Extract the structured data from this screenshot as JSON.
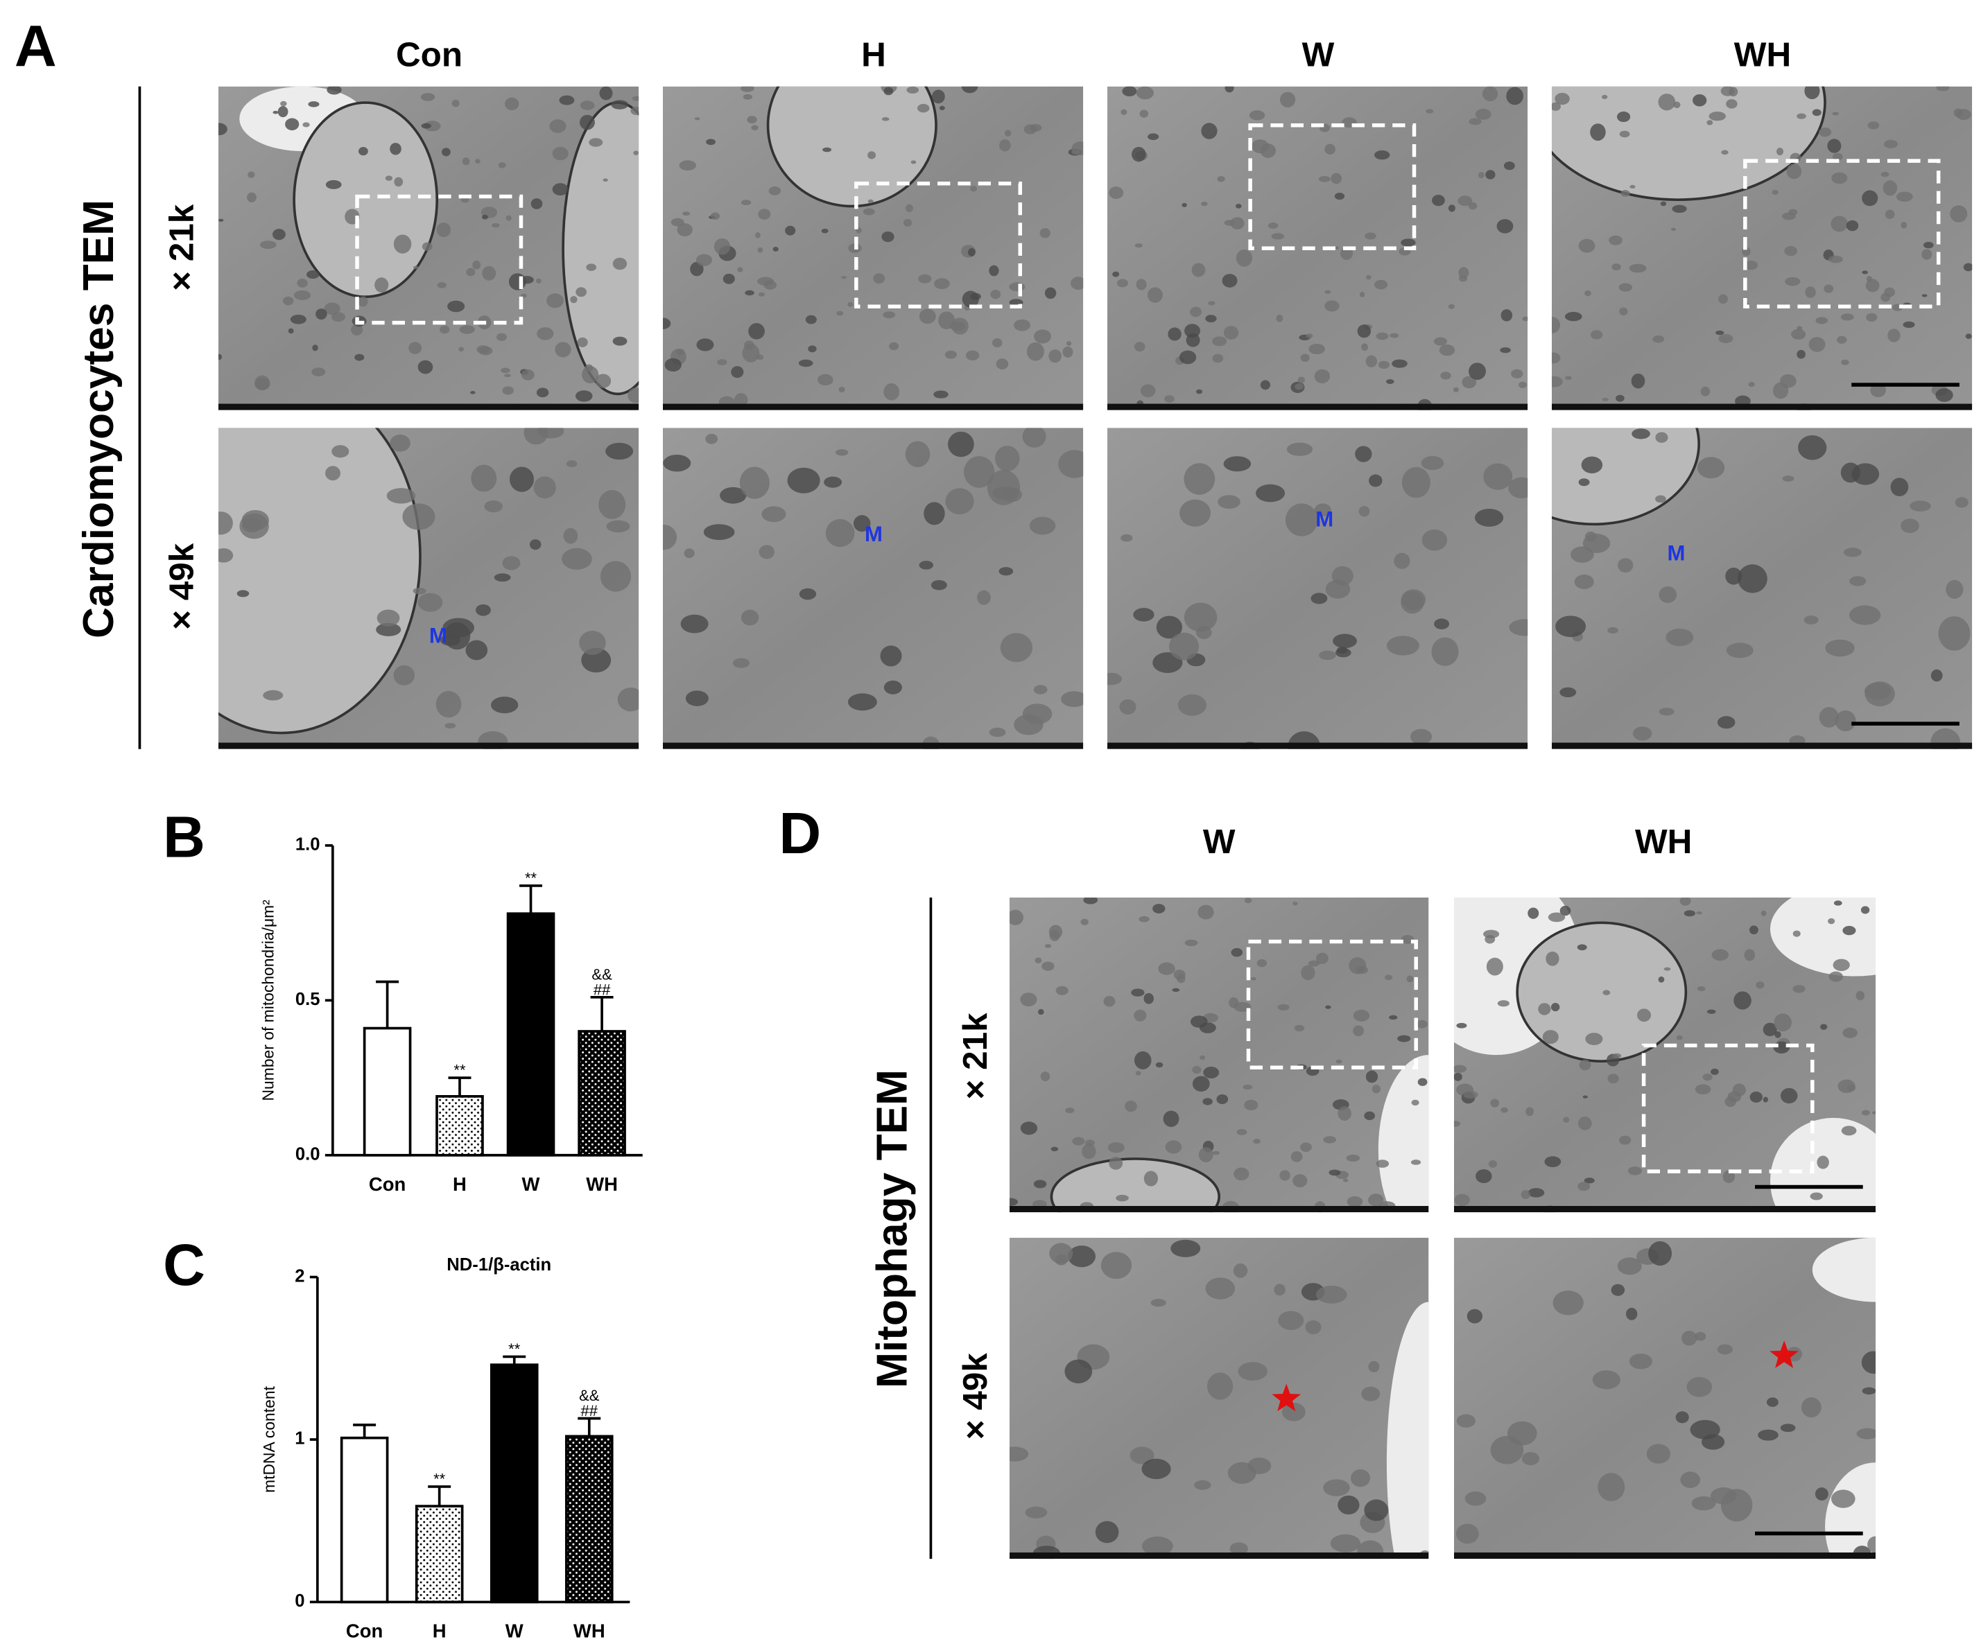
{
  "figure": {
    "panel_a": {
      "label": "A",
      "columns": [
        "Con",
        "H",
        "W",
        "WH"
      ],
      "rows": [
        "× 21k",
        "× 49k"
      ],
      "side_title": "Cardiomyocytes TEM",
      "marker": "M"
    },
    "panel_b": {
      "label": "B"
    },
    "panel_c": {
      "label": "C"
    },
    "panel_d": {
      "label": "D",
      "columns": [
        "W",
        "WH"
      ],
      "rows": [
        "× 21k",
        "× 49k"
      ],
      "side_title": "Mitophagy TEM"
    }
  },
  "chart_data": [
    {
      "type": "bar",
      "y_label": "Number of mitochondria/μm²",
      "categories": [
        "Con",
        "H",
        "W",
        "WH"
      ],
      "values": [
        0.41,
        0.19,
        0.78,
        0.4
      ],
      "errors": [
        0.15,
        0.06,
        0.09,
        0.11
      ],
      "colors": [
        "#ffffff",
        "#ffffff",
        "#000000",
        "#000000"
      ],
      "patterns": [
        "none",
        "dots",
        "none",
        "dots"
      ],
      "annotations": [
        null,
        [
          "**"
        ],
        [
          "**"
        ],
        [
          "##",
          "&&"
        ]
      ],
      "ylim": [
        0,
        1.0
      ],
      "yticks": [
        {
          "value": 0,
          "label": "0.0"
        },
        {
          "value": 0.5,
          "label": "0.5"
        },
        {
          "value": 1.0,
          "label": "1.0"
        }
      ]
    },
    {
      "type": "bar",
      "title": "ND-1/β-actin",
      "y_label": "mtDNA content",
      "categories": [
        "Con",
        "H",
        "W",
        "WH"
      ],
      "values": [
        1.01,
        0.59,
        1.46,
        1.02
      ],
      "errors": [
        0.08,
        0.12,
        0.05,
        0.11
      ],
      "colors": [
        "#ffffff",
        "#ffffff",
        "#000000",
        "#000000"
      ],
      "patterns": [
        "none",
        "dots",
        "none",
        "dots"
      ],
      "annotations": [
        null,
        [
          "**"
        ],
        [
          "**"
        ],
        [
          "##",
          "&&"
        ]
      ],
      "ylim": [
        0,
        2
      ],
      "yticks": [
        0,
        1,
        2
      ]
    }
  ]
}
